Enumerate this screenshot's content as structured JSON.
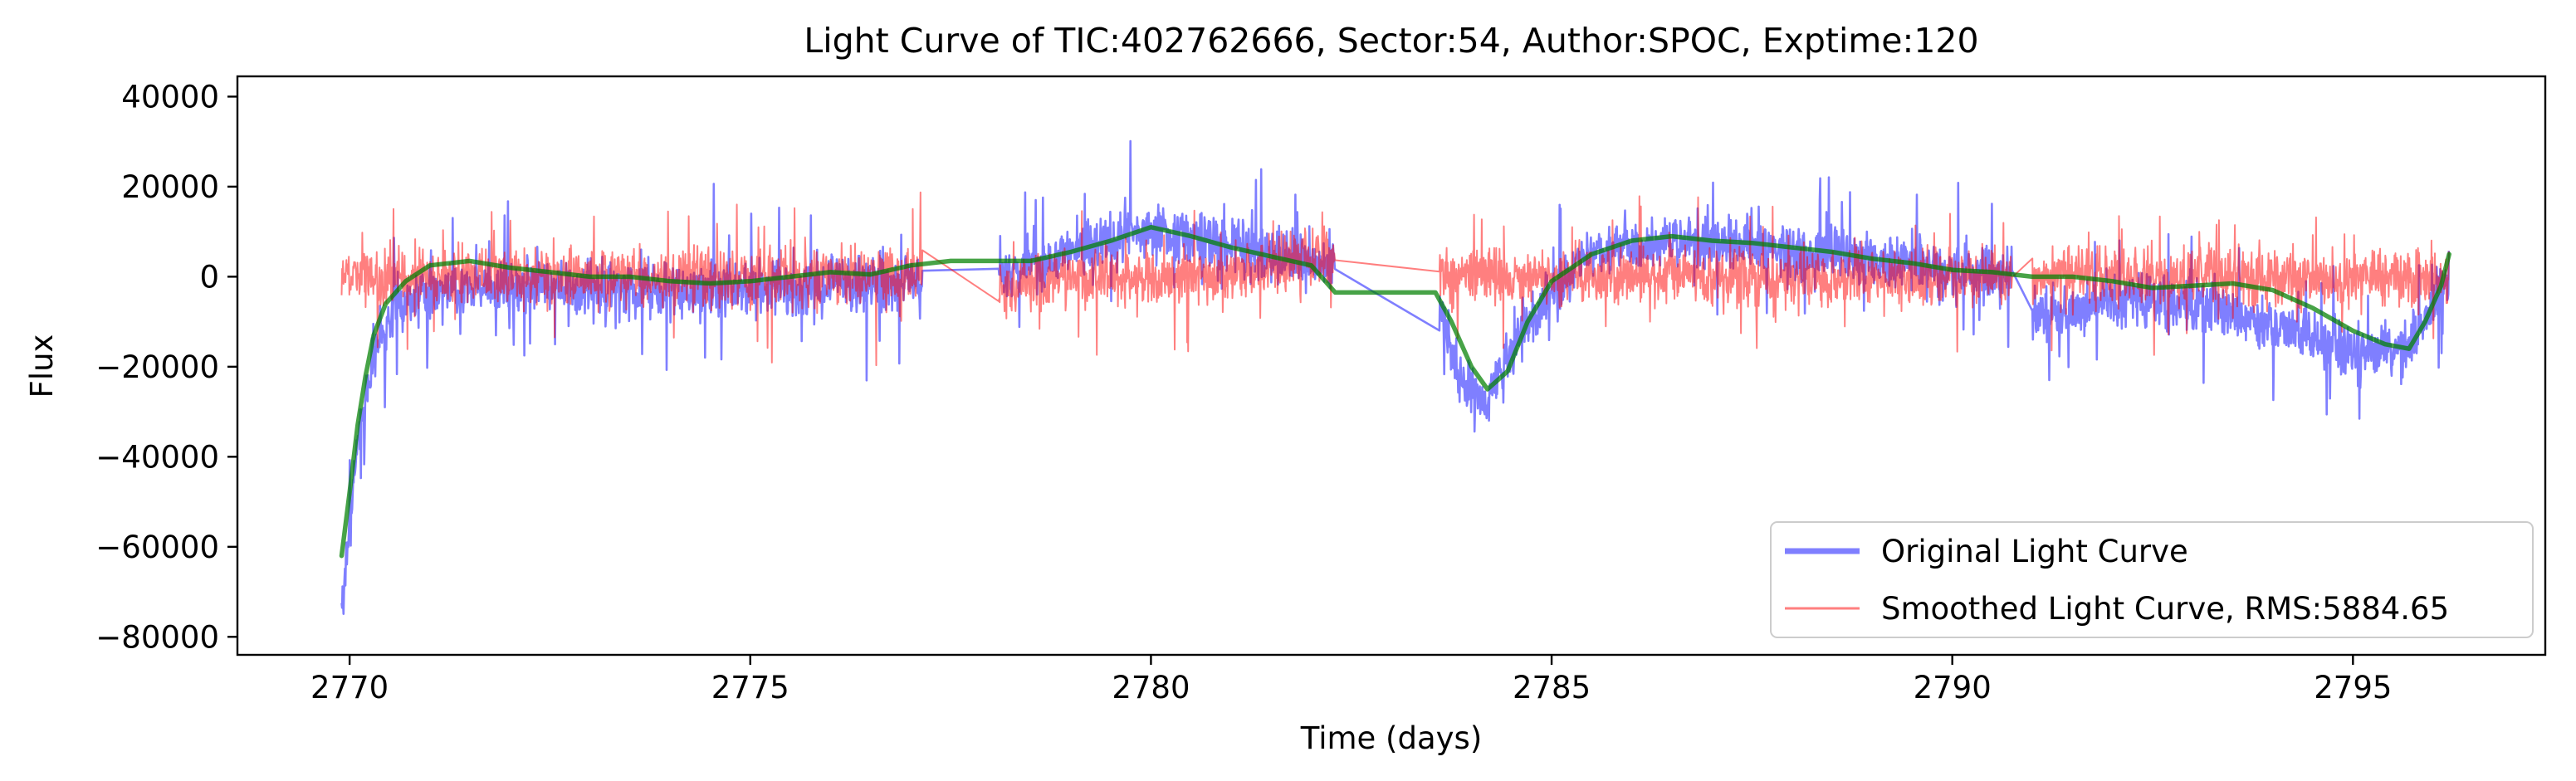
{
  "chart_data": {
    "type": "line",
    "title": "Light Curve of TIC:402762666, Sector:54, Author:SPOC, Exptime:120",
    "xlabel": "Time (days)",
    "ylabel": "Flux",
    "xlim": [
      2768.6,
      2797.4
    ],
    "ylim": [
      -84000,
      44500
    ],
    "xticks": [
      2770,
      2775,
      2780,
      2785,
      2790,
      2795
    ],
    "xtick_labels": [
      "2770",
      "2775",
      "2780",
      "2785",
      "2790",
      "2795"
    ],
    "yticks": [
      -80000,
      -60000,
      -40000,
      -20000,
      0,
      20000,
      40000
    ],
    "ytick_labels": [
      "−80000",
      "−60000",
      "−40000",
      "−20000",
      "0",
      "20000",
      "40000"
    ],
    "grid": false,
    "legend_position": "lower-right",
    "segments": [
      [
        2769.9,
        2777.15
      ],
      [
        2778.1,
        2782.3
      ],
      [
        2783.6,
        2790.75
      ],
      [
        2791.0,
        2796.2
      ]
    ],
    "series": [
      {
        "name": "Original Light Curve",
        "color": "#0000ff",
        "style": "noisy",
        "points": [
          [
            2769.9,
            -75000
          ],
          [
            2770.05,
            -45000
          ],
          [
            2770.2,
            -25000
          ],
          [
            2770.4,
            -12000
          ],
          [
            2770.6,
            -6000
          ],
          [
            2771.0,
            -3000
          ],
          [
            2772.0,
            -2000
          ],
          [
            2773.0,
            -3000
          ],
          [
            2774.0,
            -3500
          ],
          [
            2775.0,
            -3000
          ],
          [
            2776.0,
            -2000
          ],
          [
            2777.15,
            -1000
          ],
          [
            2778.1,
            0
          ],
          [
            2779.0,
            5000
          ],
          [
            2779.9,
            10000
          ],
          [
            2780.5,
            9000
          ],
          [
            2781.5,
            5000
          ],
          [
            2782.3,
            2000
          ],
          [
            2783.6,
            -8000
          ],
          [
            2783.9,
            -25000
          ],
          [
            2784.2,
            -28000
          ],
          [
            2784.6,
            -12000
          ],
          [
            2785.5,
            5000
          ],
          [
            2786.5,
            8000
          ],
          [
            2787.5,
            7000
          ],
          [
            2788.5,
            5000
          ],
          [
            2789.5,
            3000
          ],
          [
            2790.75,
            0
          ],
          [
            2791.0,
            -10000
          ],
          [
            2792.0,
            -5000
          ],
          [
            2793.0,
            -6000
          ],
          [
            2794.0,
            -10000
          ],
          [
            2795.0,
            -16000
          ],
          [
            2795.7,
            -16000
          ],
          [
            2796.2,
            0
          ]
        ]
      },
      {
        "name": "Smoothed Light Curve, RMS:5884.65",
        "color": "#ff0000",
        "style": "noisy",
        "points": [
          [
            2769.9,
            0
          ],
          [
            2770.4,
            0
          ],
          [
            2771.0,
            0
          ],
          [
            2772.0,
            0
          ],
          [
            2773.0,
            0
          ],
          [
            2774.0,
            0
          ],
          [
            2775.0,
            0
          ],
          [
            2776.0,
            0
          ],
          [
            2777.15,
            0
          ],
          [
            2778.1,
            -3000
          ],
          [
            2779.0,
            0
          ],
          [
            2780.0,
            0
          ],
          [
            2781.0,
            0
          ],
          [
            2782.3,
            5000
          ],
          [
            2783.6,
            0
          ],
          [
            2784.0,
            0
          ],
          [
            2785.0,
            0
          ],
          [
            2786.0,
            0
          ],
          [
            2787.0,
            0
          ],
          [
            2788.0,
            0
          ],
          [
            2789.0,
            0
          ],
          [
            2790.75,
            0
          ],
          [
            2791.0,
            0
          ],
          [
            2792.0,
            0
          ],
          [
            2793.0,
            0
          ],
          [
            2794.0,
            0
          ],
          [
            2795.0,
            0
          ],
          [
            2796.2,
            0
          ]
        ]
      },
      {
        "color": "#008000",
        "style": "smooth",
        "points": [
          [
            2769.9,
            -62000
          ],
          [
            2770.0,
            -48000
          ],
          [
            2770.1,
            -33000
          ],
          [
            2770.2,
            -22000
          ],
          [
            2770.3,
            -13000
          ],
          [
            2770.45,
            -6000
          ],
          [
            2770.7,
            -1000
          ],
          [
            2771.0,
            2500
          ],
          [
            2771.5,
            3500
          ],
          [
            2772.0,
            2000
          ],
          [
            2772.5,
            1000
          ],
          [
            2773.0,
            0
          ],
          [
            2773.5,
            0
          ],
          [
            2774.0,
            -1000
          ],
          [
            2774.5,
            -1500
          ],
          [
            2775.0,
            -1000
          ],
          [
            2775.5,
            0
          ],
          [
            2776.0,
            1000
          ],
          [
            2776.5,
            500
          ],
          [
            2777.0,
            2500
          ],
          [
            2777.5,
            3500
          ],
          [
            2778.5,
            3500
          ],
          [
            2779.0,
            5500
          ],
          [
            2779.5,
            8000
          ],
          [
            2780.0,
            11000
          ],
          [
            2780.5,
            9000
          ],
          [
            2781.0,
            6500
          ],
          [
            2781.5,
            4500
          ],
          [
            2782.0,
            2500
          ],
          [
            2782.3,
            -3500
          ],
          [
            2783.55,
            -3500
          ],
          [
            2783.75,
            -10000
          ],
          [
            2784.0,
            -20000
          ],
          [
            2784.2,
            -25000
          ],
          [
            2784.45,
            -21000
          ],
          [
            2784.7,
            -10000
          ],
          [
            2785.0,
            -1000
          ],
          [
            2785.5,
            5000
          ],
          [
            2786.0,
            8000
          ],
          [
            2786.5,
            9000
          ],
          [
            2787.0,
            8000
          ],
          [
            2787.5,
            7500
          ],
          [
            2788.0,
            6500
          ],
          [
            2788.5,
            5500
          ],
          [
            2789.0,
            4000
          ],
          [
            2789.5,
            3000
          ],
          [
            2790.0,
            1500
          ],
          [
            2790.5,
            1000
          ],
          [
            2791.0,
            0
          ],
          [
            2791.5,
            0
          ],
          [
            2792.0,
            -1000
          ],
          [
            2792.5,
            -2500
          ],
          [
            2793.0,
            -2000
          ],
          [
            2793.5,
            -1500
          ],
          [
            2794.0,
            -3000
          ],
          [
            2794.5,
            -7000
          ],
          [
            2795.0,
            -12000
          ],
          [
            2795.4,
            -15000
          ],
          [
            2795.7,
            -16000
          ],
          [
            2795.9,
            -10000
          ],
          [
            2796.1,
            -2000
          ],
          [
            2796.2,
            5000
          ]
        ]
      }
    ]
  }
}
